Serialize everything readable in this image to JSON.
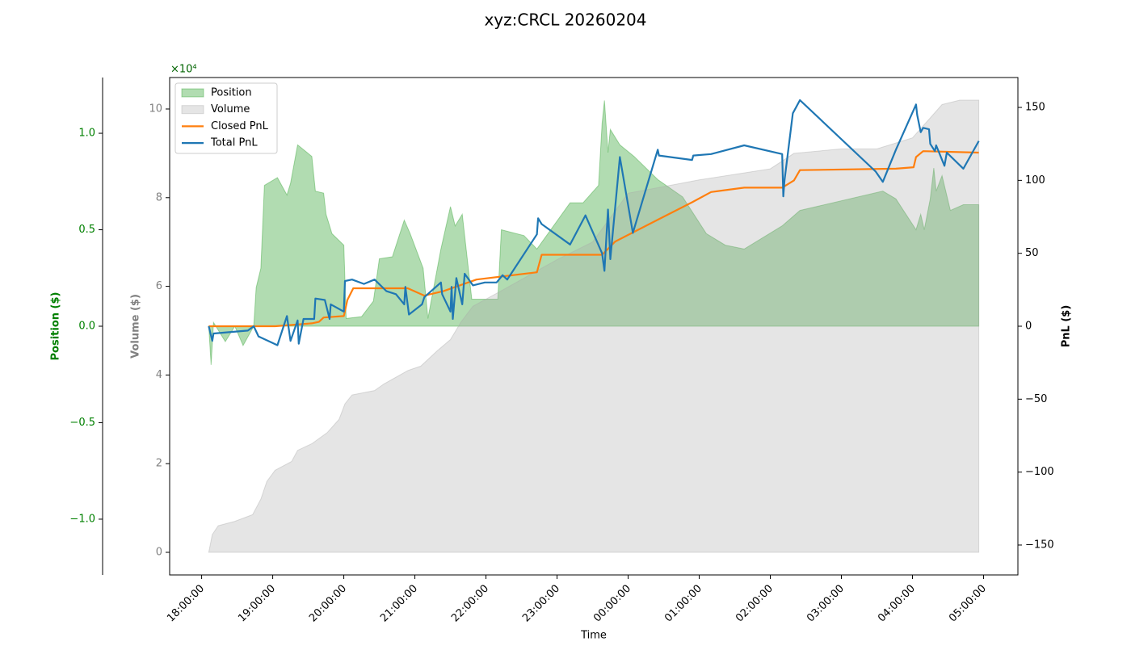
{
  "chart_data": {
    "type": "line",
    "title": "xyz:CRCL 20260204",
    "xlabel": "Time",
    "xlim": [
      "17:33",
      "05:29"
    ],
    "xticks": [
      "18:00:00",
      "19:00:00",
      "20:00:00",
      "21:00:00",
      "22:00:00",
      "23:00:00",
      "00:00:00",
      "01:00:00",
      "02:00:00",
      "03:00:00",
      "04:00:00",
      "05:00:00"
    ],
    "legend": "upper left",
    "axes": [
      {
        "label": "Position ($)",
        "color": "#008000",
        "lim": [
          -1.289,
          1.289
        ],
        "ticks": [
          {
            "value": -1,
            "label": "−1.0"
          },
          {
            "value": -0.5,
            "label": "−0.5"
          },
          {
            "value": 0,
            "label": "0.0"
          },
          0.5,
          {
            "value": 1,
            "label": "1.0"
          }
        ]
      },
      {
        "label": "Volume ($)",
        "color": "#808080",
        "offset_label": "×10⁴",
        "offset_color": "#006400",
        "lim": [
          -0.51,
          10.71
        ],
        "ticks": [
          0,
          2,
          4,
          6,
          8,
          10
        ]
      },
      {
        "label": "PnL ($)",
        "color": "#000000",
        "lim": [
          -170.5,
          170.5
        ],
        "ticks": [
          {
            "value": -150,
            "label": "−150"
          },
          {
            "value": -100,
            "label": "−100"
          },
          {
            "value": -50,
            "label": "−50"
          },
          0,
          50,
          100,
          150
        ]
      }
    ],
    "series": [
      {
        "name": "Position",
        "kind": "area",
        "axis": 0,
        "color": "#2ca02c",
        "x": [
          "18:06",
          "18:08",
          "18:10",
          "18:20",
          "18:28",
          "18:35",
          "18:44",
          "18:46",
          "18:50",
          "18:53",
          "19:04",
          "19:12",
          "19:15",
          "19:21",
          "19:33",
          "19:36",
          "19:43",
          "19:45",
          "19:50",
          "20:00",
          "20:02",
          "20:15",
          "20:25",
          "20:30",
          "20:41",
          "20:51",
          "20:56",
          "21:07",
          "21:11",
          "21:22",
          "21:30",
          "21:34",
          "21:40",
          "21:48",
          "22:10",
          "22:13",
          "22:32",
          "22:43",
          "23:11",
          "23:22",
          "23:35",
          "23:38",
          "23:40",
          "23:43",
          "23:45",
          "23:53",
          "00:05",
          "00:25",
          "00:46",
          "01:06",
          "01:22",
          "01:38",
          "02:10",
          "02:25",
          "03:35",
          "03:46",
          "04:03",
          "04:07",
          "04:10",
          "04:15",
          "04:18",
          "04:20",
          "04:25",
          "04:32",
          "04:43",
          "04:56"
        ],
        "values": [
          0,
          -0.2,
          0.02,
          -0.08,
          0,
          -0.1,
          0,
          0.2,
          0.3,
          0.73,
          0.77,
          0.68,
          0.74,
          0.94,
          0.88,
          0.7,
          0.69,
          0.58,
          0.48,
          0.42,
          0.04,
          0.05,
          0.13,
          0.35,
          0.36,
          0.55,
          0.48,
          0.3,
          0.04,
          0.4,
          0.62,
          0.52,
          0.58,
          0.14,
          0.14,
          0.5,
          0.47,
          0.4,
          0.64,
          0.64,
          0.73,
          1.05,
          1.17,
          0.9,
          1.02,
          0.94,
          0.88,
          0.76,
          0.67,
          0.48,
          0.42,
          0.4,
          0.52,
          0.6,
          0.7,
          0.66,
          0.5,
          0.58,
          0.5,
          0.66,
          0.82,
          0.7,
          0.78,
          0.6,
          0.63,
          0.63
        ]
      },
      {
        "name": "Volume",
        "kind": "area",
        "axis": 1,
        "color": "#a9a9a9",
        "x": [
          "18:06",
          "18:09",
          "18:14",
          "18:28",
          "18:43",
          "18:50",
          "18:55",
          "19:02",
          "19:16",
          "19:21",
          "19:33",
          "19:46",
          "19:56",
          "20:01",
          "20:07",
          "20:26",
          "20:34",
          "20:54",
          "21:05",
          "21:19",
          "21:30",
          "21:39",
          "21:49",
          "22:13",
          "22:43",
          "23:00",
          "23:30",
          "23:45",
          "00:00",
          "00:30",
          "01:00",
          "02:00",
          "02:20",
          "03:00",
          "03:30",
          "04:00",
          "04:15",
          "04:25",
          "04:40",
          "04:56"
        ],
        "values": [
          0,
          0.4,
          0.6,
          0.7,
          0.85,
          1.2,
          1.6,
          1.85,
          2.05,
          2.3,
          2.45,
          2.7,
          3.0,
          3.35,
          3.55,
          3.65,
          3.8,
          4.1,
          4.2,
          4.55,
          4.8,
          5.2,
          5.55,
          5.9,
          6.35,
          6.6,
          7.0,
          7.55,
          8.1,
          8.25,
          8.4,
          8.65,
          9.0,
          9.1,
          9.1,
          9.35,
          9.8,
          10.1,
          10.2,
          10.2
        ]
      },
      {
        "name": "Closed PnL",
        "kind": "line",
        "axis": 2,
        "color": "#ff7f0e",
        "x": [
          "18:06",
          "19:02",
          "19:33",
          "19:39",
          "19:43",
          "20:00",
          "20:03",
          "20:08",
          "20:54",
          "21:08",
          "21:24",
          "21:52",
          "22:43",
          "22:47",
          "23:38",
          "23:49",
          "00:25",
          "00:54",
          "01:10",
          "01:38",
          "02:10",
          "02:20",
          "02:25",
          "03:46",
          "04:01",
          "04:03",
          "04:09",
          "04:56"
        ],
        "values": [
          0,
          0,
          2,
          3,
          6,
          7,
          18,
          26,
          26,
          21,
          24,
          32,
          37,
          49,
          49,
          58,
          73,
          85,
          92,
          95,
          95,
          100,
          107,
          108,
          109,
          116,
          120,
          119
        ]
      },
      {
        "name": "Total PnL",
        "kind": "line",
        "axis": 2,
        "color": "#1f77b4",
        "x": [
          "18:06",
          "18:09",
          "18:10",
          "18:39",
          "18:44",
          "18:48",
          "19:04",
          "19:12",
          "19:15",
          "19:21",
          "19:22",
          "19:26",
          "19:35",
          "19:36",
          "19:44",
          "19:48",
          "19:49",
          "20:00",
          "20:01",
          "20:07",
          "20:17",
          "20:26",
          "20:36",
          "20:44",
          "20:51",
          "20:52",
          "20:55",
          "21:06",
          "21:08",
          "21:22",
          "21:23",
          "21:30",
          "21:31",
          "21:32",
          "21:35",
          "21:40",
          "21:42",
          "21:49",
          "21:59",
          "22:09",
          "22:14",
          "22:18",
          "22:43",
          "22:44",
          "22:47",
          "23:11",
          "23:24",
          "23:38",
          "23:40",
          "23:43",
          "23:45",
          "23:53",
          "00:04",
          "00:25",
          "00:26",
          "00:54",
          "00:55",
          "01:10",
          "01:38",
          "02:10",
          "02:11",
          "02:12",
          "02:19",
          "02:25",
          "03:29",
          "03:35",
          "03:46",
          "04:03",
          "04:04",
          "04:07",
          "04:09",
          "04:14",
          "04:15",
          "04:19",
          "04:20",
          "04:27",
          "04:29",
          "04:43",
          "04:56"
        ],
        "values": [
          0,
          -10,
          -5,
          -3,
          0,
          -7,
          -13,
          7,
          -10,
          4,
          -12,
          5,
          5,
          19,
          18,
          5,
          15,
          10,
          31,
          32,
          29,
          32,
          24,
          22,
          15,
          27,
          8,
          15,
          20,
          30,
          22,
          10,
          27,
          5,
          33,
          15,
          36,
          28,
          30,
          30,
          35,
          32,
          63,
          74,
          70,
          56,
          76,
          50,
          38,
          80,
          46,
          116,
          64,
          121,
          117,
          114,
          117,
          118,
          124,
          118,
          89,
          100,
          146,
          155,
          106,
          99,
          121,
          152,
          145,
          133,
          136,
          135,
          125,
          120,
          124,
          110,
          119,
          108,
          127
        ]
      }
    ]
  }
}
